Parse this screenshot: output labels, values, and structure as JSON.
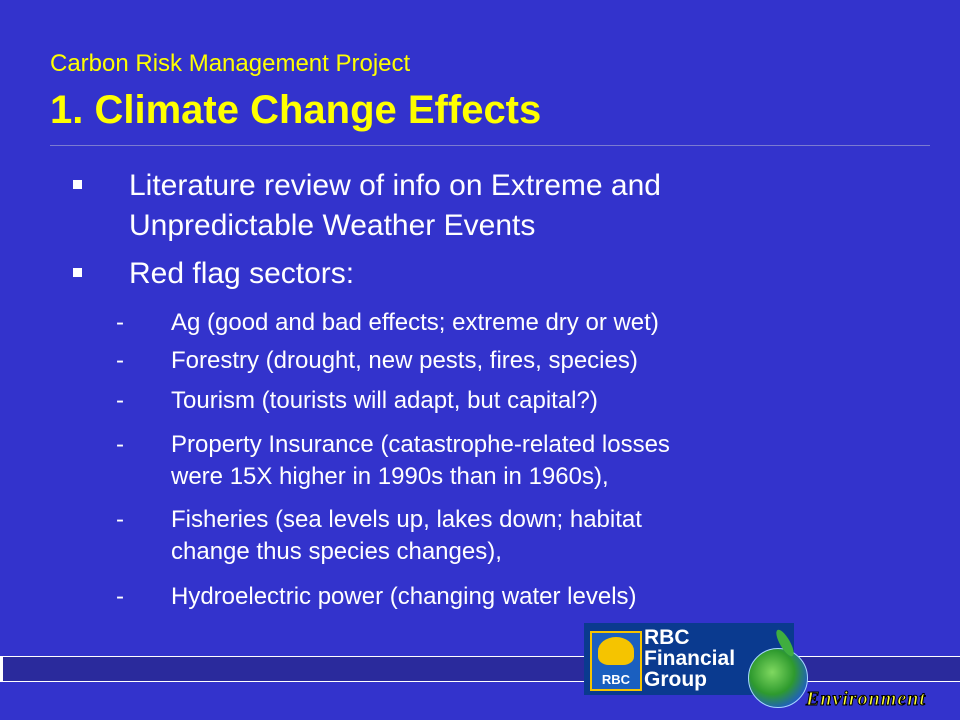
{
  "header": {
    "subtitle": "Carbon Risk Management Project",
    "title": "1. Climate Change Effects"
  },
  "bullets": [
    {
      "lines": [
        "Literature review of info on Extreme and",
        "Unpredictable Weather Events"
      ]
    },
    {
      "lines": [
        "Red flag sectors:"
      ]
    }
  ],
  "sectors": [
    {
      "dash": "-",
      "lines": [
        "Ag (good and bad effects; extreme dry or wet)"
      ]
    },
    {
      "dash": "-",
      "lines": [
        "Forestry (drought, new pests, fires, species)"
      ]
    },
    {
      "dash": "-",
      "lines": [
        "Tourism (tourists will adapt, but capital?)"
      ]
    },
    {
      "dash": "-",
      "lines": [
        "Property Insurance (catastrophe-related losses",
        "were 15X higher in 1990s than in 1960s),"
      ]
    },
    {
      "dash": "-",
      "lines": [
        "Fisheries (sea levels up, lakes down; habitat",
        "change thus species changes),"
      ]
    },
    {
      "dash": "-",
      "lines": [
        "Hydroelectric power (changing water levels)"
      ]
    }
  ],
  "logo": {
    "emblem_text": "RBC",
    "lines": [
      "RBC",
      "Financial",
      "Group"
    ]
  },
  "environment_label": "Environment",
  "colors": {
    "background": "#3333cc",
    "title": "#ffff00",
    "text": "#ffffff"
  }
}
